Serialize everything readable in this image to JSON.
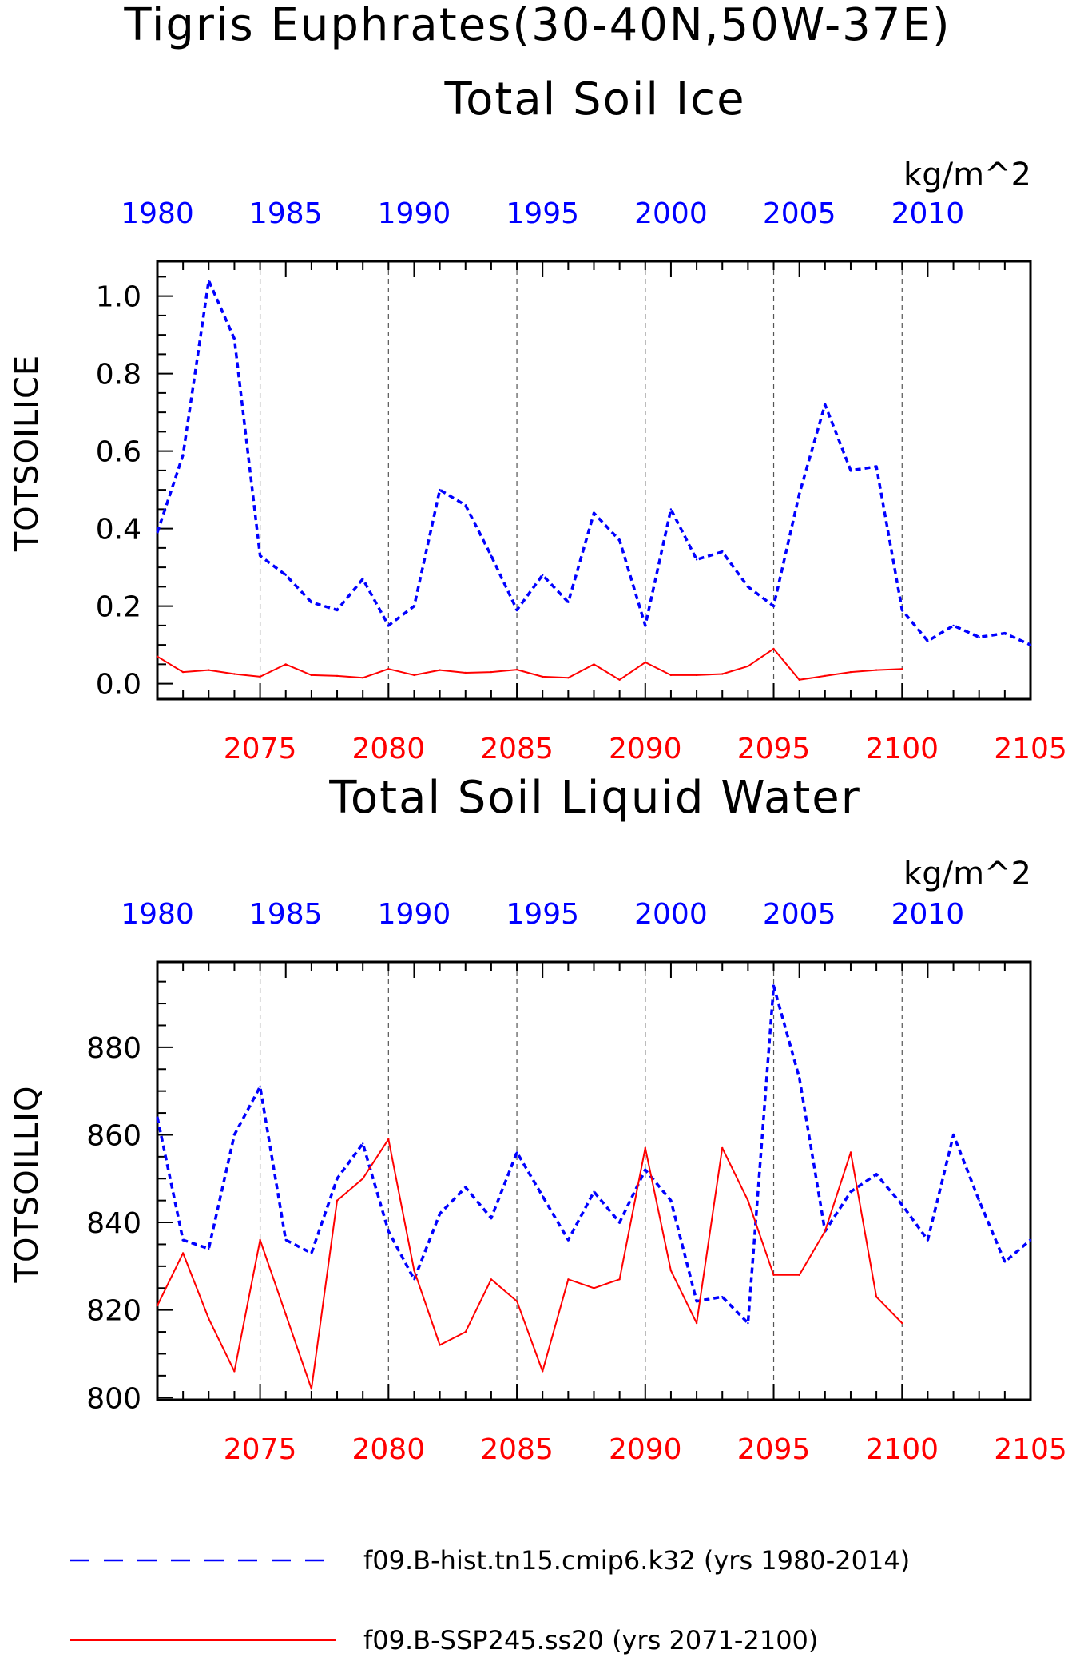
{
  "page_title": "Tigris Euphrates(30-40N,50W-37E)",
  "colors": {
    "hist": "#0000ff",
    "ssp": "#ff0000",
    "axis": "#000000"
  },
  "legend": [
    {
      "name": "f09.B-hist.tn15.cmip6.k32 (yrs 1980-2014)",
      "color": "#0000ff",
      "style": "dashed"
    },
    {
      "name": "f09.B-SSP245.ss20 (yrs 2071-2100)",
      "color": "#ff0000",
      "style": "solid"
    }
  ],
  "chart_data": [
    {
      "type": "line",
      "title": "Total Soil Ice",
      "ylabel": "TOTSOILICE",
      "units": "kg/m^2",
      "ylim": [
        -0.04,
        1.09
      ],
      "yticks": [
        0.0,
        0.2,
        0.4,
        0.6,
        0.8,
        1.0
      ],
      "ytick_labels": [
        "0.0",
        "0.2",
        "0.4",
        "0.6",
        "0.8",
        "1.0"
      ],
      "top_xlim": [
        1980,
        2014
      ],
      "top_xticks": [
        "1980",
        "1985",
        "1990",
        "1995",
        "2000",
        "2005",
        "2010"
      ],
      "bottom_xlim": [
        2071,
        2105
      ],
      "bottom_xticks": [
        "2075",
        "2080",
        "2085",
        "2090",
        "2095",
        "2100",
        "2105"
      ],
      "vertical_gridlines_at": [
        2075,
        2080,
        2085,
        2090,
        2095,
        2100
      ],
      "series": [
        {
          "name": "f09.B-hist.tn15.cmip6.k32 (yrs 1980-2014)",
          "axis": "top",
          "color": "#0000ff",
          "style": "dashed",
          "x": [
            1980,
            1981,
            1982,
            1983,
            1984,
            1985,
            1986,
            1987,
            1988,
            1989,
            1990,
            1991,
            1992,
            1993,
            1994,
            1995,
            1996,
            1997,
            1998,
            1999,
            2000,
            2001,
            2002,
            2003,
            2004,
            2005,
            2006,
            2007,
            2008,
            2009,
            2010,
            2011,
            2012,
            2013,
            2014
          ],
          "values": [
            0.39,
            0.59,
            1.04,
            0.89,
            0.33,
            0.28,
            0.21,
            0.19,
            0.27,
            0.15,
            0.2,
            0.5,
            0.46,
            0.33,
            0.19,
            0.28,
            0.21,
            0.44,
            0.37,
            0.15,
            0.45,
            0.32,
            0.34,
            0.25,
            0.2,
            0.49,
            0.72,
            0.55,
            0.56,
            0.19,
            0.11,
            0.15,
            0.12,
            0.13,
            0.1
          ]
        },
        {
          "name": "f09.B-SSP245.ss20 (yrs 2071-2100)",
          "axis": "bottom",
          "color": "#ff0000",
          "style": "solid",
          "x": [
            2071,
            2072,
            2073,
            2074,
            2075,
            2076,
            2077,
            2078,
            2079,
            2080,
            2081,
            2082,
            2083,
            2084,
            2085,
            2086,
            2087,
            2088,
            2089,
            2090,
            2091,
            2092,
            2093,
            2094,
            2095,
            2096,
            2097,
            2098,
            2099,
            2100
          ],
          "values": [
            0.07,
            0.03,
            0.035,
            0.025,
            0.018,
            0.05,
            0.022,
            0.02,
            0.015,
            0.038,
            0.022,
            0.035,
            0.028,
            0.03,
            0.036,
            0.018,
            0.015,
            0.05,
            0.01,
            0.055,
            0.022,
            0.022,
            0.025,
            0.045,
            0.09,
            0.01,
            0.02,
            0.03,
            0.035,
            0.038
          ]
        }
      ]
    },
    {
      "type": "line",
      "title": "Total Soil Liquid Water",
      "ylabel": "TOTSOILLIQ",
      "units": "kg/m^2",
      "ylim": [
        799.5,
        899.5
      ],
      "yticks": [
        800,
        820,
        840,
        860,
        880
      ],
      "ytick_labels": [
        "800",
        "820",
        "840",
        "860",
        "880"
      ],
      "top_xlim": [
        1980,
        2014
      ],
      "top_xticks": [
        "1980",
        "1985",
        "1990",
        "1995",
        "2000",
        "2005",
        "2010"
      ],
      "bottom_xlim": [
        2071,
        2105
      ],
      "bottom_xticks": [
        "2075",
        "2080",
        "2085",
        "2090",
        "2095",
        "2100",
        "2105"
      ],
      "vertical_gridlines_at": [
        2075,
        2080,
        2085,
        2090,
        2095,
        2100
      ],
      "series": [
        {
          "name": "f09.B-hist.tn15.cmip6.k32 (yrs 1980-2014)",
          "axis": "top",
          "color": "#0000ff",
          "style": "dashed",
          "x": [
            1980,
            1981,
            1982,
            1983,
            1984,
            1985,
            1986,
            1987,
            1988,
            1989,
            1990,
            1991,
            1992,
            1993,
            1994,
            1995,
            1996,
            1997,
            1998,
            1999,
            2000,
            2001,
            2002,
            2003,
            2004,
            2005,
            2006,
            2007,
            2008,
            2009,
            2010,
            2011,
            2012,
            2013,
            2014
          ],
          "values": [
            864,
            836,
            834,
            860,
            871,
            836,
            833,
            850,
            858,
            838,
            827,
            842,
            848,
            841,
            856,
            846,
            836,
            847,
            840,
            852,
            845,
            822,
            823,
            817,
            894,
            873,
            838,
            847,
            851,
            844,
            836,
            860,
            845,
            831,
            836
          ]
        },
        {
          "name": "f09.B-SSP245.ss20 (yrs 2071-2100)",
          "axis": "bottom",
          "color": "#ff0000",
          "style": "solid",
          "x": [
            2071,
            2072,
            2073,
            2074,
            2075,
            2076,
            2077,
            2078,
            2079,
            2080,
            2081,
            2082,
            2083,
            2084,
            2085,
            2086,
            2087,
            2088,
            2089,
            2090,
            2091,
            2092,
            2093,
            2094,
            2095,
            2096,
            2097,
            2098,
            2099,
            2100
          ],
          "values": [
            821,
            833,
            818,
            806,
            836,
            819,
            802,
            845,
            850,
            859,
            829,
            812,
            815,
            827,
            822,
            806,
            827,
            825,
            827,
            857,
            829,
            817,
            857,
            845,
            828,
            828,
            838,
            856,
            823,
            817
          ]
        }
      ]
    }
  ]
}
